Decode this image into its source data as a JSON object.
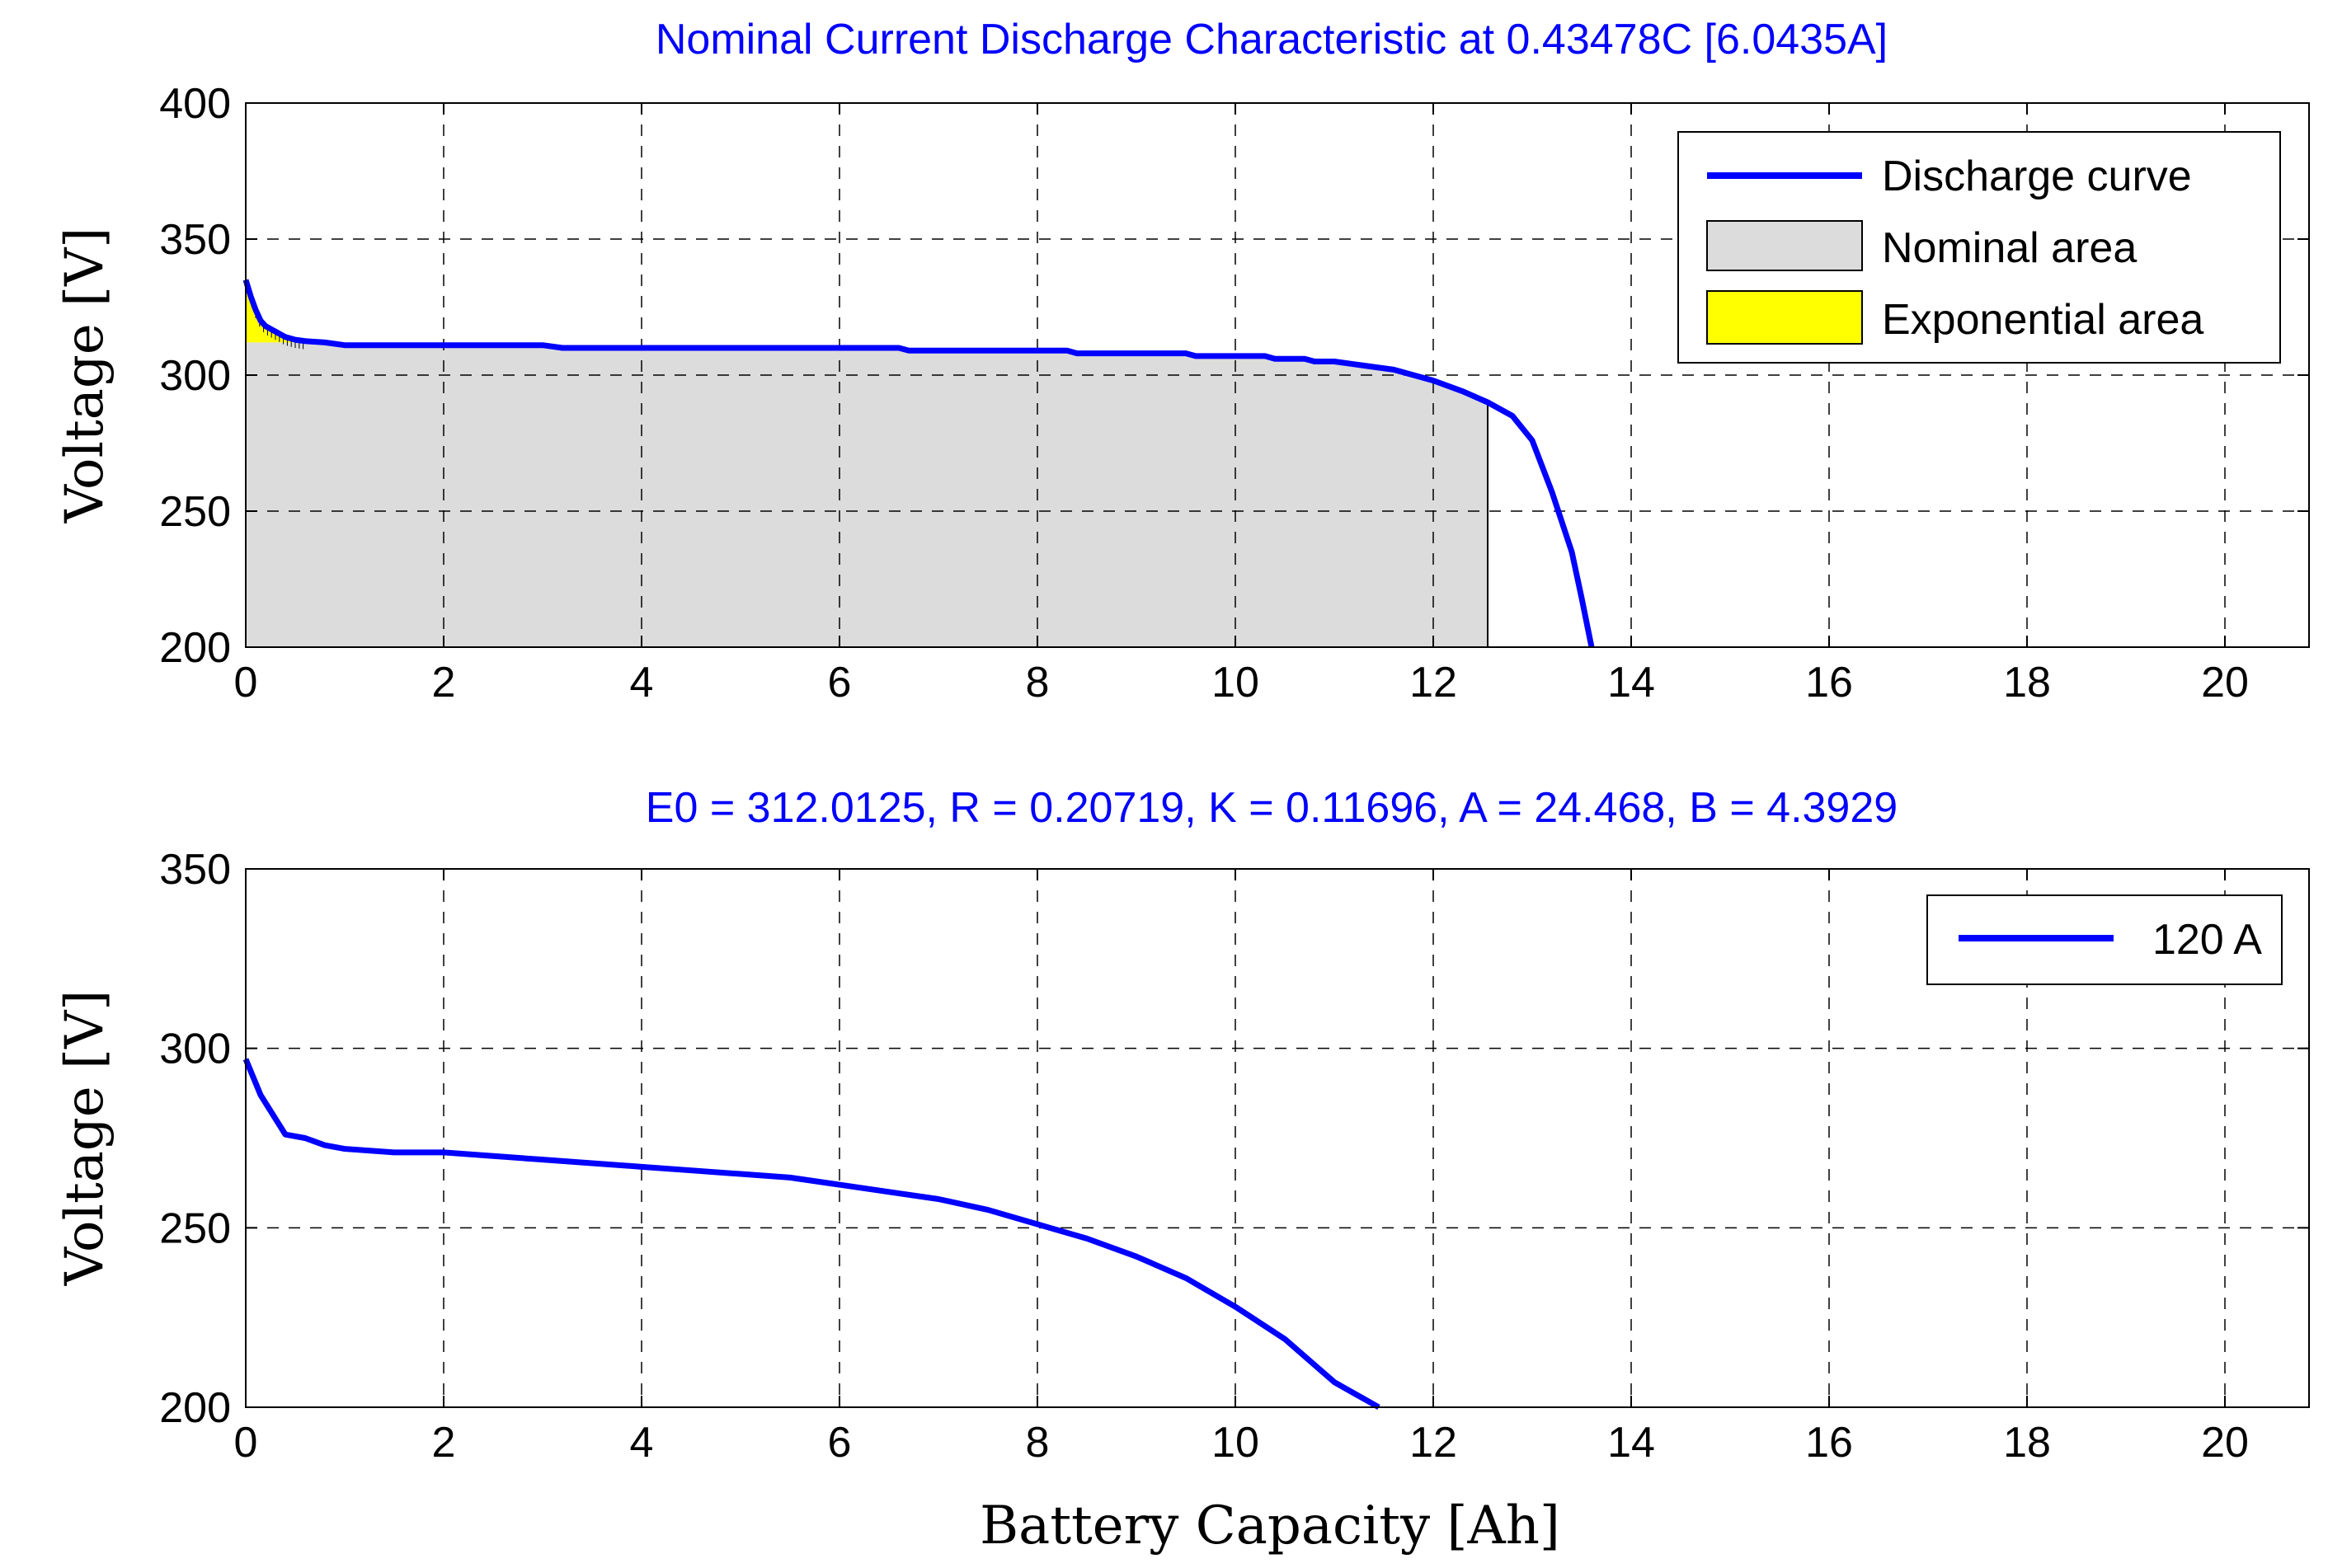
{
  "chart_data": [
    {
      "type": "line",
      "title": "Nominal Current Discharge Characteristic at 0.43478C [6.0435A]",
      "xlabel": "",
      "ylabel": "Voltage [V]",
      "xlim": [
        0,
        20.85
      ],
      "ylim": [
        200,
        400
      ],
      "xticks": [
        "0",
        "2",
        "4",
        "6",
        "8",
        "10",
        "12",
        "14",
        "16",
        "18",
        "20"
      ],
      "yticks": [
        "200",
        "250",
        "300",
        "350",
        "400"
      ],
      "grid": true,
      "legend_position": "top-right",
      "legend": [
        "Discharge curve",
        "Nominal area",
        "Exponential area"
      ],
      "series": [
        {
          "name": "Discharge curve",
          "x": [
            0,
            0.05,
            0.1,
            0.15,
            0.2,
            0.3,
            0.4,
            0.5,
            0.6,
            0.8,
            1,
            2,
            3,
            3.2,
            4,
            5,
            6,
            6.6,
            6.7,
            7,
            8,
            8.3,
            8.4,
            9,
            9.5,
            9.6,
            10,
            10.3,
            10.4,
            10.7,
            10.8,
            11,
            11.2,
            11.4,
            11.6,
            12,
            12.3,
            12.55,
            12.8,
            13,
            13.2,
            13.4,
            13.5,
            13.6
          ],
          "values": [
            335,
            329,
            324,
            320,
            318,
            316,
            314,
            313,
            312.5,
            312,
            311,
            311,
            311,
            310,
            310,
            310,
            310,
            310,
            309,
            309,
            309,
            309,
            308,
            308,
            308,
            307,
            307,
            307,
            306,
            306,
            305,
            305,
            304,
            303,
            302,
            298,
            294,
            290,
            285,
            276,
            257,
            235,
            218,
            200
          ]
        }
      ],
      "nominal_area": {
        "x_end": 12.55,
        "v_end": 290
      },
      "exponential_area": {
        "x_end": 0.6,
        "v_floor": 312
      }
    },
    {
      "type": "line",
      "title": "E0 = 312.0125, R = 0.20719, K = 0.11696, A = 24.468, B = 4.3929",
      "xlabel": "Battery Capacity [Ah]",
      "ylabel": "Voltage [V]",
      "xlim": [
        0,
        20.85
      ],
      "ylim": [
        200,
        350
      ],
      "xticks": [
        "0",
        "2",
        "4",
        "6",
        "8",
        "10",
        "12",
        "14",
        "16",
        "18",
        "20"
      ],
      "yticks": [
        "200",
        "250",
        "300",
        "350"
      ],
      "grid": true,
      "legend_position": "top-right",
      "legend": [
        "120 A"
      ],
      "series": [
        {
          "name": "120 A",
          "x": [
            0,
            0.15,
            0.4,
            0.6,
            0.8,
            1,
            1.5,
            2,
            2.5,
            3,
            3.5,
            4,
            4.5,
            5,
            5.5,
            6,
            6.5,
            7,
            7.5,
            8,
            8.5,
            9,
            9.5,
            10,
            10.5,
            11,
            11.45
          ],
          "values": [
            297,
            287,
            276,
            275,
            273,
            272,
            271,
            271,
            270,
            269,
            268,
            267,
            266,
            265,
            264,
            262,
            260,
            258,
            255,
            251,
            247,
            242,
            236,
            228,
            219,
            207,
            200
          ]
        }
      ]
    }
  ]
}
